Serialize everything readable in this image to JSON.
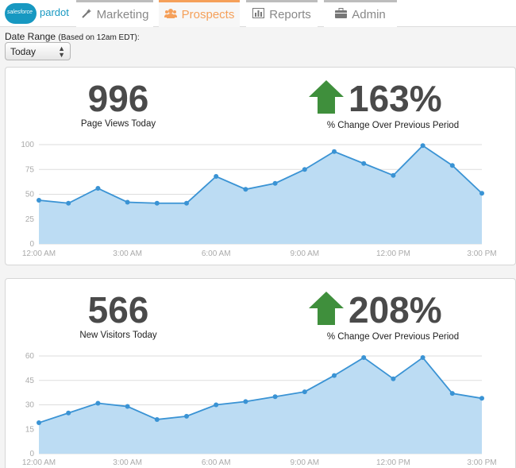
{
  "app": {
    "logo_brand": "salesforce",
    "logo_product": "pardot"
  },
  "nav": {
    "tabs": [
      {
        "label": "Marketing",
        "icon": "wand-icon",
        "active": false
      },
      {
        "label": "Prospects",
        "icon": "users-icon",
        "active": true
      },
      {
        "label": "Reports",
        "icon": "bar-chart-icon",
        "active": false
      },
      {
        "label": "Admin",
        "icon": "briefcase-icon",
        "active": false
      }
    ]
  },
  "filters": {
    "date_range_label": "Date Range",
    "date_range_note": "(Based on 12am EDT):",
    "date_range_value": "Today"
  },
  "colors": {
    "accent": "#f5a05a",
    "line": "#3a93d4",
    "fill": "#bcdcf3",
    "up_arrow": "#3f8f3c"
  },
  "page_views": {
    "value": "996",
    "label": "Page Views Today",
    "change": "163%",
    "change_label": "% Change Over Previous Period",
    "change_direction": "up"
  },
  "new_visitors": {
    "value": "566",
    "label": "New Visitors Today",
    "change": "208%",
    "change_label": "% Change Over Previous Period",
    "change_direction": "up"
  },
  "chart_data": [
    {
      "type": "area",
      "series_of": "page_views",
      "x": [
        "12:00 AM",
        "1:00 AM",
        "2:00 AM",
        "3:00 AM",
        "4:00 AM",
        "5:00 AM",
        "6:00 AM",
        "7:00 AM",
        "8:00 AM",
        "9:00 AM",
        "10:00 AM",
        "11:00 AM",
        "12:00 PM",
        "1:00 PM",
        "2:00 PM",
        "3:00 PM"
      ],
      "values": [
        44,
        41,
        56,
        42,
        41,
        41,
        68,
        55,
        61,
        75,
        93,
        81,
        69,
        99,
        79,
        51
      ],
      "x_tick_labels": [
        "12:00 AM",
        "3:00 AM",
        "6:00 AM",
        "9:00 AM",
        "12:00 PM",
        "3:00 PM"
      ],
      "y_ticks": [
        0,
        25,
        50,
        75,
        100
      ],
      "ylim": [
        0,
        100
      ],
      "grid": true
    },
    {
      "type": "area",
      "series_of": "new_visitors",
      "x": [
        "12:00 AM",
        "1:00 AM",
        "2:00 AM",
        "3:00 AM",
        "4:00 AM",
        "5:00 AM",
        "6:00 AM",
        "7:00 AM",
        "8:00 AM",
        "9:00 AM",
        "10:00 AM",
        "11:00 AM",
        "12:00 PM",
        "1:00 PM",
        "2:00 PM",
        "3:00 PM"
      ],
      "values": [
        19,
        25,
        31,
        29,
        21,
        23,
        30,
        32,
        35,
        38,
        48,
        59,
        46,
        59,
        37,
        34
      ],
      "x_tick_labels": [
        "12:00 AM",
        "3:00 AM",
        "6:00 AM",
        "9:00 AM",
        "12:00 PM",
        "3:00 PM"
      ],
      "y_ticks": [
        0,
        15,
        30,
        45,
        60
      ],
      "ylim": [
        0,
        60
      ],
      "grid": true
    }
  ]
}
